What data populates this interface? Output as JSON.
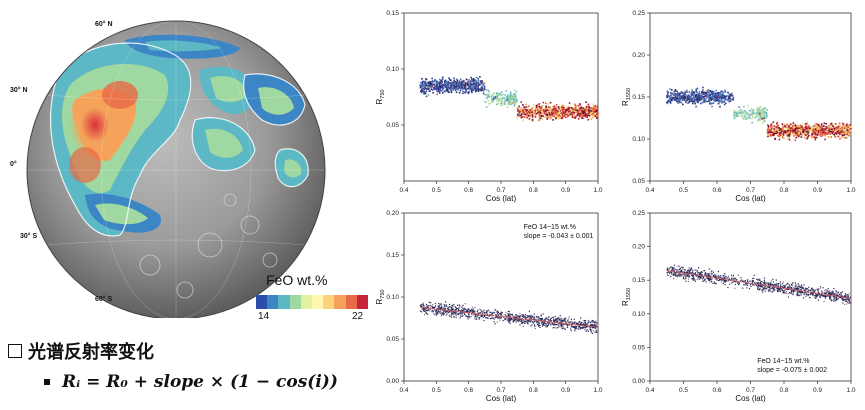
{
  "map": {
    "lat_labels": [
      "60° N",
      "30° N",
      "0°",
      "30° S",
      "60° S"
    ],
    "colorbar": {
      "title": "FeO wt.%",
      "min_label": "14",
      "max_label": "22",
      "colors": [
        "#2c4ea8",
        "#3c86c6",
        "#5cb8c4",
        "#9fd8a0",
        "#e2f0a0",
        "#fff6b0",
        "#fdd27a",
        "#f6a25a",
        "#e86a46",
        "#c8243c"
      ]
    }
  },
  "heading": {
    "text": "光谱反射率变化"
  },
  "formula": {
    "text": "Rᵢ = R₀ + slope × (1 − cos(i))"
  },
  "chart_data": [
    {
      "type": "scatter",
      "xlabel": "Cos (lat)",
      "ylabel": "R750",
      "ylabel_main": "R",
      "ylabel_sub": "750",
      "xlim": [
        0.4,
        1.0
      ],
      "ylim": [
        0.0,
        0.15
      ],
      "xticks": [
        "0.4",
        "0.5",
        "0.6",
        "0.7",
        "0.8",
        "0.9",
        "1.0"
      ],
      "yticks": [
        "0.05",
        "0.10",
        "0.15"
      ],
      "ytick_values": [
        0.05,
        0.1,
        0.15
      ],
      "colored": true,
      "seed": 11,
      "low_cluster": 0.085,
      "high_cluster": 0.062,
      "annotation": []
    },
    {
      "type": "scatter",
      "xlabel": "Cos (lat)",
      "ylabel": "R1550",
      "ylabel_main": "R",
      "ylabel_sub": "1550",
      "xlim": [
        0.4,
        1.0
      ],
      "ylim": [
        0.05,
        0.25
      ],
      "xticks": [
        "0.4",
        "0.5",
        "0.6",
        "0.7",
        "0.8",
        "0.9",
        "1.0"
      ],
      "yticks": [
        "0.05",
        "0.10",
        "0.15",
        "0.20",
        "0.25"
      ],
      "ytick_values": [
        0.05,
        0.1,
        0.15,
        0.2,
        0.25
      ],
      "colored": true,
      "seed": 29,
      "low_cluster": 0.15,
      "high_cluster": 0.11,
      "annotation": []
    },
    {
      "type": "scatter",
      "xlabel": "Cos (lat)",
      "ylabel": "R750",
      "ylabel_main": "R",
      "ylabel_sub": "750",
      "xlim": [
        0.4,
        1.0
      ],
      "ylim": [
        0.0,
        0.2
      ],
      "xticks": [
        "0.4",
        "0.5",
        "0.6",
        "0.7",
        "0.8",
        "0.9",
        "1.0"
      ],
      "yticks": [
        "0.00",
        "0.05",
        "0.10",
        "0.15",
        "0.20"
      ],
      "ytick_values": [
        0.0,
        0.05,
        0.1,
        0.15,
        0.2
      ],
      "colored": false,
      "seed": 47,
      "fit": {
        "slope": -0.043,
        "intercept": 0.107
      },
      "annotation": [
        "FeO 14~15 wt.%",
        "slope = -0.043 ± 0.001"
      ],
      "annotation_pos": "top"
    },
    {
      "type": "scatter",
      "xlabel": "Cos (lat)",
      "ylabel": "R1550",
      "ylabel_main": "R",
      "ylabel_sub": "1550",
      "xlim": [
        0.4,
        1.0
      ],
      "ylim": [
        0.0,
        0.25
      ],
      "xticks": [
        "0.4",
        "0.5",
        "0.6",
        "0.7",
        "0.8",
        "0.9",
        "1.0"
      ],
      "yticks": [
        "0.00",
        "0.05",
        "0.10",
        "0.15",
        "0.20",
        "0.25"
      ],
      "ytick_values": [
        0.0,
        0.05,
        0.1,
        0.15,
        0.2,
        0.25
      ],
      "colored": false,
      "seed": 83,
      "fit": {
        "slope": -0.075,
        "intercept": 0.198
      },
      "annotation": [
        "FeO 14~15 wt.%",
        "slope = -0.075 ± 0.002"
      ],
      "annotation_pos": "bottom"
    }
  ]
}
